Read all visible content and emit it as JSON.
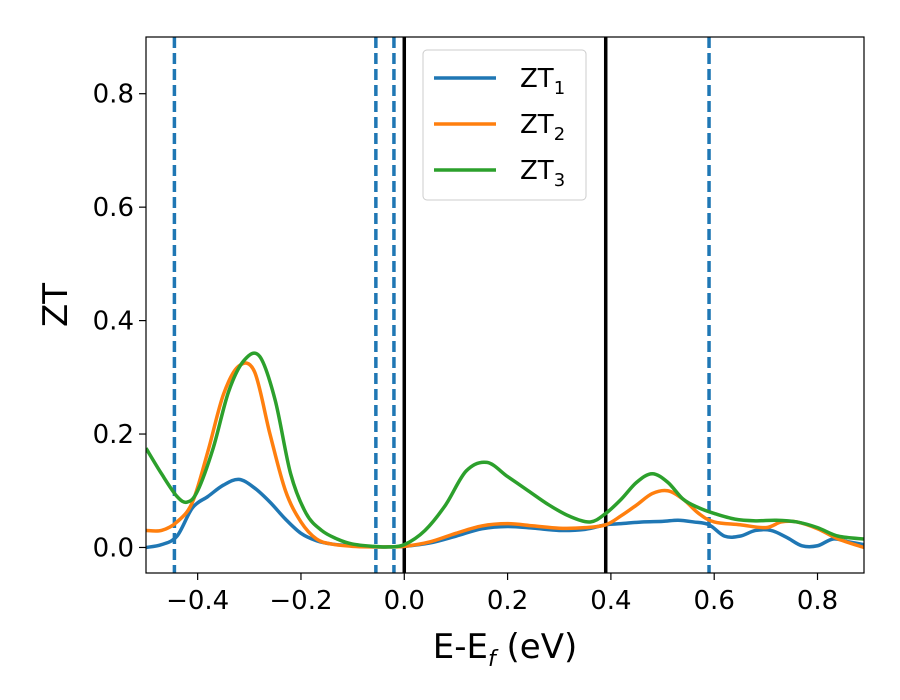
{
  "chart_data": {
    "type": "line",
    "xlabel_main": "E-E",
    "xlabel_sub": "f",
    "xlabel_unit": " (eV)",
    "ylabel": "ZT",
    "xlim": [
      -0.5,
      0.89
    ],
    "ylim": [
      -0.045,
      0.9
    ],
    "x_ticks": [
      -0.4,
      -0.2,
      0.0,
      0.2,
      0.4,
      0.6,
      0.8
    ],
    "x_tick_labels": [
      "−0.4",
      "−0.2",
      "0.0",
      "0.2",
      "0.4",
      "0.6",
      "0.8"
    ],
    "y_ticks": [
      0.0,
      0.2,
      0.4,
      0.6,
      0.8
    ],
    "y_tick_labels": [
      "0.0",
      "0.2",
      "0.4",
      "0.6",
      "0.8"
    ],
    "grid": false,
    "legend_position": "top-center",
    "vlines_dashed": [
      -0.445,
      -0.055,
      -0.02,
      0.59
    ],
    "vlines_dashed_color": "#1f77b4",
    "vlines_solid": [
      0.0,
      0.39
    ],
    "vlines_solid_color": "#000000",
    "series": [
      {
        "name": "ZT",
        "sub": "1",
        "color": "#1f77b4",
        "x": [
          -0.5,
          -0.47,
          -0.44,
          -0.41,
          -0.38,
          -0.35,
          -0.32,
          -0.29,
          -0.26,
          -0.23,
          -0.2,
          -0.17,
          -0.14,
          -0.1,
          -0.06,
          -0.03,
          0.0,
          0.05,
          0.1,
          0.15,
          0.2,
          0.25,
          0.3,
          0.35,
          0.39,
          0.42,
          0.46,
          0.5,
          0.53,
          0.56,
          0.59,
          0.62,
          0.65,
          0.68,
          0.71,
          0.74,
          0.77,
          0.8,
          0.83,
          0.86,
          0.89
        ],
        "y": [
          0.0,
          0.005,
          0.02,
          0.07,
          0.09,
          0.11,
          0.12,
          0.105,
          0.08,
          0.05,
          0.025,
          0.012,
          0.006,
          0.003,
          0.001,
          0.001,
          0.002,
          0.008,
          0.02,
          0.033,
          0.037,
          0.034,
          0.03,
          0.032,
          0.04,
          0.042,
          0.045,
          0.046,
          0.048,
          0.045,
          0.04,
          0.02,
          0.02,
          0.03,
          0.03,
          0.018,
          0.003,
          0.003,
          0.015,
          0.01,
          0.005
        ]
      },
      {
        "name": "ZT",
        "sub": "2",
        "color": "#ff7f0e",
        "x": [
          -0.5,
          -0.47,
          -0.44,
          -0.41,
          -0.38,
          -0.35,
          -0.32,
          -0.29,
          -0.26,
          -0.23,
          -0.2,
          -0.17,
          -0.14,
          -0.1,
          -0.06,
          -0.03,
          0.0,
          0.05,
          0.1,
          0.15,
          0.2,
          0.25,
          0.3,
          0.35,
          0.39,
          0.42,
          0.45,
          0.48,
          0.51,
          0.54,
          0.57,
          0.6,
          0.65,
          0.7,
          0.73,
          0.76,
          0.8,
          0.84,
          0.89
        ],
        "y": [
          0.03,
          0.03,
          0.045,
          0.08,
          0.17,
          0.27,
          0.32,
          0.31,
          0.2,
          0.1,
          0.045,
          0.015,
          0.006,
          0.002,
          0.001,
          0.001,
          0.002,
          0.01,
          0.025,
          0.038,
          0.042,
          0.038,
          0.034,
          0.035,
          0.04,
          0.056,
          0.075,
          0.095,
          0.1,
          0.085,
          0.06,
          0.045,
          0.04,
          0.035,
          0.045,
          0.045,
          0.033,
          0.015,
          0.0
        ]
      },
      {
        "name": "ZT",
        "sub": "3",
        "color": "#2ca02c",
        "x": [
          -0.5,
          -0.47,
          -0.44,
          -0.42,
          -0.4,
          -0.37,
          -0.34,
          -0.31,
          -0.28,
          -0.25,
          -0.22,
          -0.19,
          -0.16,
          -0.13,
          -0.1,
          -0.06,
          -0.03,
          0.0,
          0.04,
          0.08,
          0.12,
          0.16,
          0.2,
          0.24,
          0.28,
          0.32,
          0.36,
          0.39,
          0.42,
          0.45,
          0.48,
          0.51,
          0.54,
          0.57,
          0.6,
          0.64,
          0.68,
          0.72,
          0.76,
          0.8,
          0.84,
          0.89
        ],
        "y": [
          0.175,
          0.13,
          0.09,
          0.08,
          0.1,
          0.175,
          0.275,
          0.33,
          0.337,
          0.26,
          0.13,
          0.06,
          0.03,
          0.015,
          0.006,
          0.002,
          0.001,
          0.005,
          0.03,
          0.075,
          0.135,
          0.15,
          0.125,
          0.1,
          0.075,
          0.055,
          0.045,
          0.06,
          0.085,
          0.115,
          0.13,
          0.115,
          0.085,
          0.07,
          0.06,
          0.05,
          0.047,
          0.048,
          0.045,
          0.035,
          0.02,
          0.015
        ]
      }
    ]
  }
}
